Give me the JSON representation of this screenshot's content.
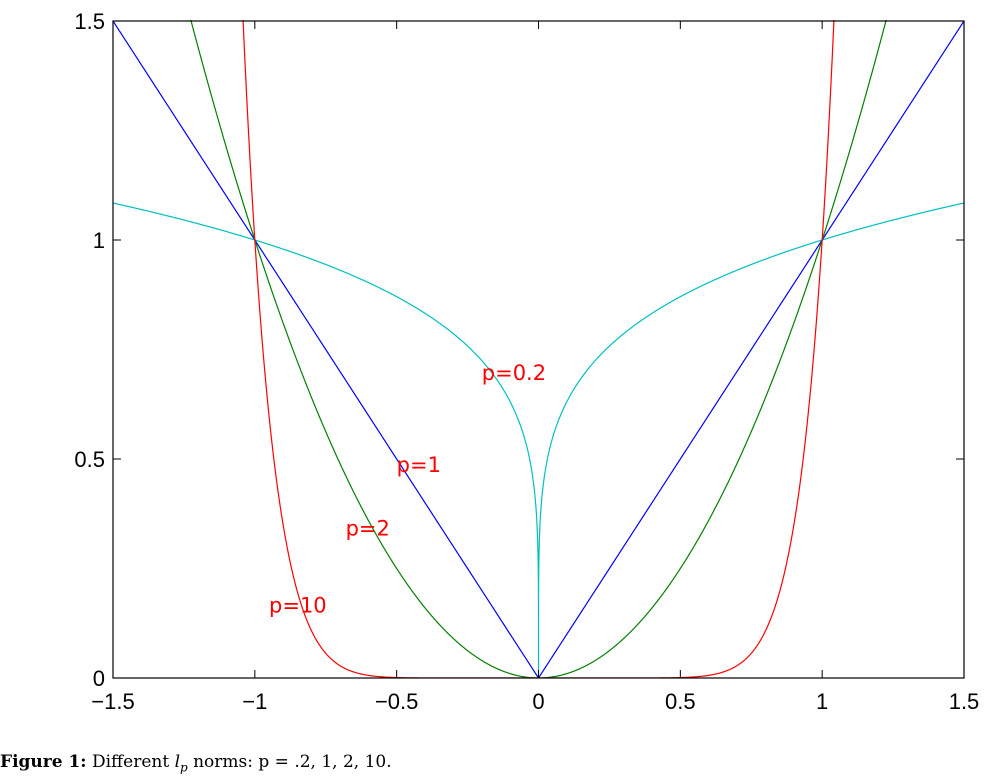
{
  "chart_data": {
    "type": "line",
    "title": "",
    "xlabel": "",
    "ylabel": "",
    "xlim": [
      -1.5,
      1.5
    ],
    "ylim": [
      0,
      1.5
    ],
    "grid": false,
    "legend": "none (inline curve labels)",
    "x_ticks": [
      "-1.5",
      "-1",
      "-0.5",
      "0",
      "0.5",
      "1",
      "1.5"
    ],
    "y_ticks": [
      "0",
      "0.5",
      "1",
      "1.5"
    ],
    "function": "y = |x|^p",
    "series": [
      {
        "name": "p=0.2",
        "p": 0.2,
        "color": "#00bfbf",
        "label": "p=0.2",
        "label_pos": [
          -0.2,
          0.68
        ],
        "x": [
          -1.5,
          -1,
          -0.5,
          -0.1,
          0,
          0.1,
          0.5,
          1,
          1.5
        ],
        "y": [
          1.084,
          1,
          0.871,
          0.631,
          0,
          0.631,
          0.871,
          1,
          1.084
        ]
      },
      {
        "name": "p=1",
        "p": 1,
        "color": "#0000ff",
        "label": "p=1",
        "label_pos": [
          -0.5,
          0.47
        ],
        "x": [
          -1.5,
          -1,
          -0.5,
          0,
          0.5,
          1,
          1.5
        ],
        "y": [
          1.5,
          1,
          0.5,
          0,
          0.5,
          1,
          1.5
        ]
      },
      {
        "name": "p=2",
        "p": 2,
        "color": "#008000",
        "label": "p=2",
        "label_pos": [
          -0.68,
          0.325
        ],
        "x": [
          -1.22,
          -1,
          -0.5,
          0,
          0.5,
          1,
          1.22
        ],
        "y": [
          1.5,
          1,
          0.25,
          0,
          0.25,
          1,
          1.5
        ]
      },
      {
        "name": "p=10",
        "p": 10,
        "color": "#ff0000",
        "label": "p=10",
        "label_pos": [
          -0.95,
          0.15
        ],
        "x": [
          -1.041,
          -1,
          -0.8,
          -0.5,
          0,
          0.5,
          0.8,
          1,
          1.041
        ],
        "y": [
          1.5,
          1,
          0.107,
          0.001,
          0,
          0.001,
          0.107,
          1,
          1.5
        ]
      }
    ]
  },
  "caption": {
    "prefix": "Figure 1:",
    "text_before": "Different",
    "symbol": "l",
    "subscript": "p",
    "text_after": "norms:  p = .2, 1, 2, 10."
  }
}
